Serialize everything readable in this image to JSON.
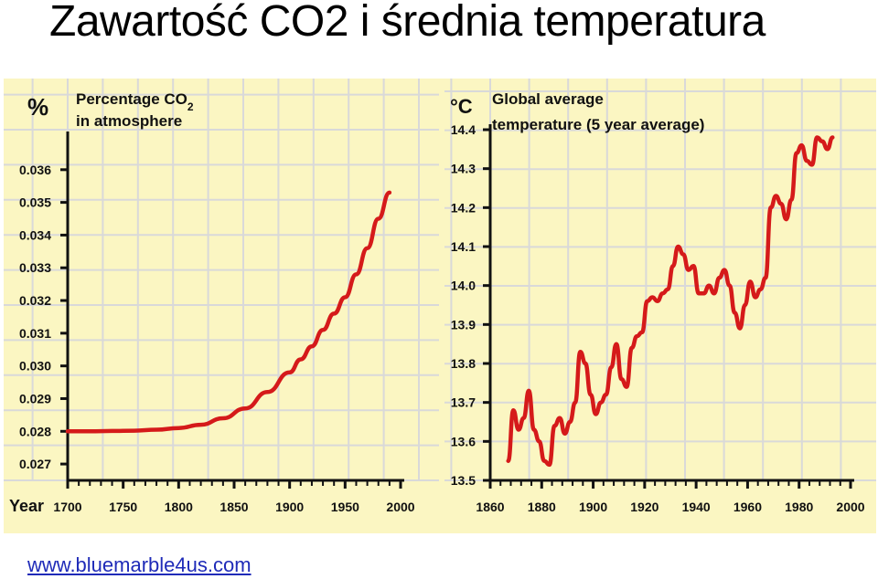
{
  "title": "Zawartość CO2 i średnia temperatura",
  "footer": {
    "link_text": "www.bluemarble4us.com"
  },
  "colors": {
    "panel": "#fbf6c2",
    "grid": "#d9d9d9",
    "axis": "#111111",
    "line": "#d51a1a",
    "title": "#000000",
    "link": "#1f2bb8"
  },
  "chart_data": [
    {
      "type": "line",
      "unit_label": "%",
      "title_line1": "Percentage CO",
      "title_sub": "2",
      "title_line2": "in atmosphere",
      "year_label": "Year",
      "xlim": [
        1700,
        2000
      ],
      "ylim": [
        0.0265,
        0.037
      ],
      "x_ticks": [
        1700,
        1750,
        1800,
        1850,
        1900,
        1950,
        2000
      ],
      "x_tick_labels": [
        "1700",
        "1750",
        "1800",
        "1850",
        "1900",
        "1950",
        "2000"
      ],
      "y_ticks": [
        0.027,
        0.028,
        0.029,
        0.03,
        0.031,
        0.032,
        0.033,
        0.034,
        0.035,
        0.036
      ],
      "y_tick_labels": [
        "0.027",
        "0.028",
        "0.029",
        "0.030",
        "0.031",
        "0.032",
        "0.033",
        "0.034",
        "0.035",
        "0.036"
      ],
      "grid": true,
      "series": [
        {
          "x": [
            1700,
            1720,
            1740,
            1760,
            1780,
            1800,
            1820,
            1840,
            1860,
            1880,
            1900,
            1910,
            1920,
            1930,
            1940,
            1950,
            1960,
            1970,
            1980,
            1990
          ],
          "y": [
            0.028,
            0.028,
            0.02801,
            0.02802,
            0.02805,
            0.0281,
            0.0282,
            0.0284,
            0.0287,
            0.0292,
            0.0298,
            0.0302,
            0.0306,
            0.0311,
            0.0316,
            0.0321,
            0.0328,
            0.0336,
            0.0345,
            0.0353
          ]
        }
      ]
    },
    {
      "type": "line",
      "unit_label": "°C",
      "title_line1": "Global average",
      "title_line2": "temperature (5 year average)",
      "xlim": [
        1860,
        2000
      ],
      "ylim": [
        13.5,
        14.4
      ],
      "x_ticks": [
        1860,
        1880,
        1900,
        1920,
        1940,
        1960,
        1980,
        2000
      ],
      "x_tick_labels": [
        "1860",
        "1880",
        "1900",
        "1920",
        "1940",
        "1960",
        "1980",
        "2000"
      ],
      "y_ticks": [
        13.5,
        13.6,
        13.7,
        13.8,
        13.9,
        14.0,
        14.1,
        14.2,
        14.3,
        14.4
      ],
      "y_tick_labels": [
        "13.5",
        "13.6",
        "13.7",
        "13.8",
        "13.9",
        "14.0",
        "14.1",
        "14.2",
        "14.3",
        "14.4"
      ],
      "grid": true,
      "series": [
        {
          "x": [
            1867,
            1869,
            1871,
            1873,
            1875,
            1877,
            1879,
            1881,
            1883,
            1885,
            1887,
            1889,
            1891,
            1893,
            1895,
            1897,
            1899,
            1901,
            1903,
            1905,
            1907,
            1909,
            1911,
            1913,
            1915,
            1917,
            1919,
            1921,
            1923,
            1925,
            1927,
            1929,
            1931,
            1933,
            1935,
            1937,
            1939,
            1941,
            1943,
            1945,
            1947,
            1949,
            1951,
            1953,
            1955,
            1957,
            1959,
            1961,
            1963,
            1965,
            1967,
            1969,
            1971,
            1973,
            1975,
            1977,
            1979,
            1981,
            1983,
            1985,
            1987,
            1989,
            1991,
            1993
          ],
          "y": [
            13.55,
            13.68,
            13.63,
            13.66,
            13.73,
            13.63,
            13.6,
            13.55,
            13.54,
            13.64,
            13.66,
            13.62,
            13.65,
            13.7,
            13.83,
            13.8,
            13.72,
            13.67,
            13.7,
            13.72,
            13.79,
            13.85,
            13.76,
            13.74,
            13.84,
            13.87,
            13.88,
            13.96,
            13.97,
            13.96,
            13.98,
            13.99,
            14.05,
            14.1,
            14.08,
            14.04,
            14.05,
            13.98,
            13.98,
            14.0,
            13.98,
            14.02,
            14.04,
            14.0,
            13.93,
            13.89,
            13.95,
            14.01,
            13.97,
            13.99,
            14.02,
            14.2,
            14.23,
            14.21,
            14.17,
            14.22,
            14.34,
            14.36,
            14.32,
            14.31,
            14.38,
            14.37,
            14.35,
            14.38
          ]
        }
      ]
    }
  ]
}
